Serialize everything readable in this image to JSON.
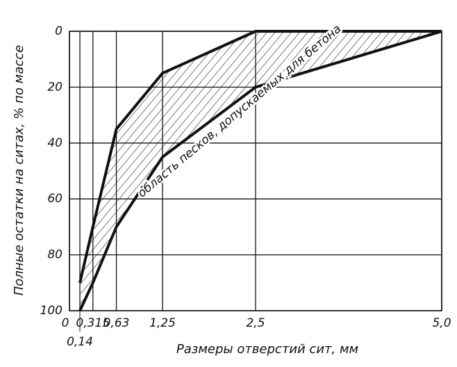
{
  "chart_data": {
    "type": "line",
    "x": [
      0.14,
      0.315,
      0.63,
      1.25,
      2.5,
      5.0
    ],
    "series": [
      {
        "color": "#111111",
        "values": [
          90,
          70,
          35,
          15,
          0,
          0
        ]
      },
      {
        "color": "#111111",
        "values": [
          100,
          90,
          70,
          45,
          20,
          0
        ]
      }
    ],
    "xlim": [
      0,
      5.0
    ],
    "xticks": [
      0,
      {
        "value": 0.14,
        "label": "0,14"
      },
      {
        "value": 0.315,
        "label": "0,315"
      },
      {
        "value": 0.63,
        "label": "0,63"
      },
      {
        "value": 1.25,
        "label": "1,25"
      },
      {
        "value": 2.5,
        "label": "2,5"
      },
      {
        "value": 5.0,
        "label": "5,0"
      }
    ],
    "ylim": [
      0,
      100
    ],
    "yticks": [
      0,
      20,
      40,
      60,
      80,
      100
    ],
    "y_inverted": true,
    "grid": true,
    "fill_between_hatched": true,
    "xlabel": "Размеры отверстий сит, мм",
    "ylabel": "Полные остатки на ситах, % по массе",
    "annotation": "область песков, допускаемых для бетона"
  }
}
